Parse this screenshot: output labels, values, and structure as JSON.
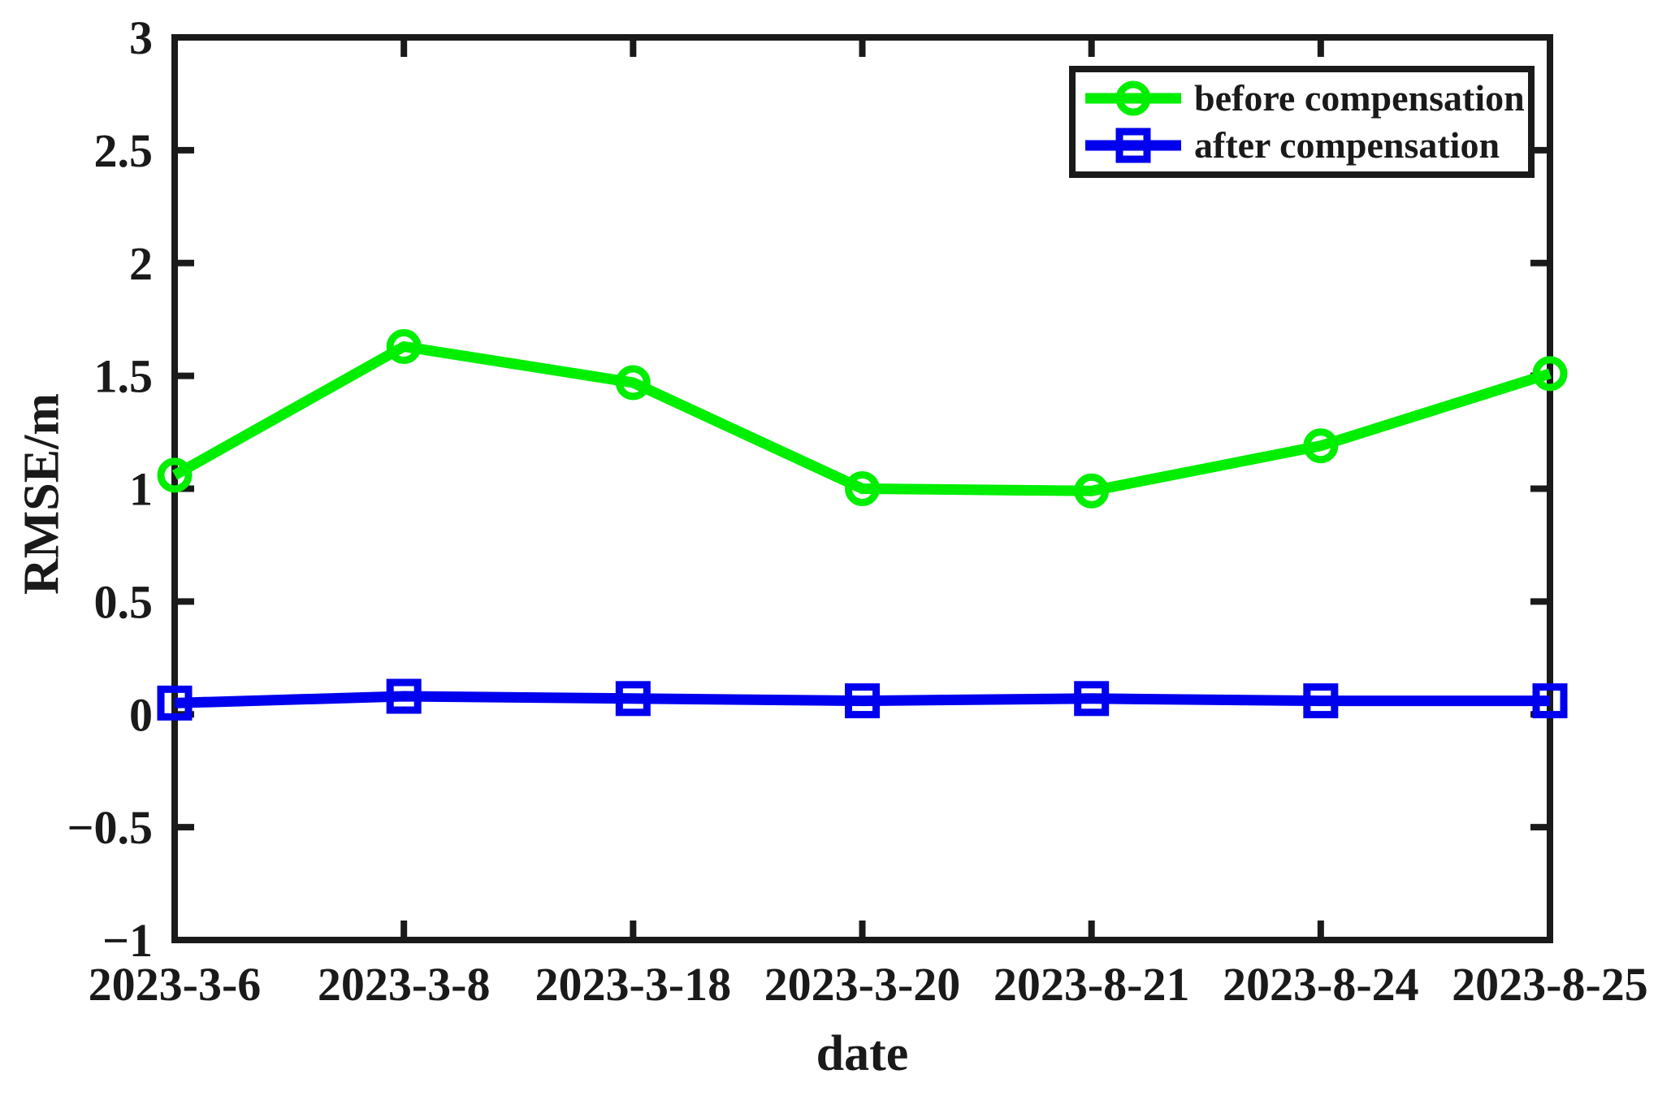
{
  "figure": {
    "background": "#ffffff",
    "axis_color": "#1a1a1a",
    "text_color": "#1a1a1a"
  },
  "chart_data": {
    "type": "line",
    "title": "",
    "xlabel": "date",
    "ylabel": "RMSE/m",
    "categories": [
      "2023-3-6",
      "2023-3-8",
      "2023-3-18",
      "2023-3-20",
      "2023-8-21",
      "2023-8-24",
      "2023-8-25"
    ],
    "series": [
      {
        "name": "before compensation",
        "color": "#00ee00",
        "marker": "circle",
        "values": [
          1.06,
          1.63,
          1.47,
          1.0,
          0.99,
          1.19,
          1.51
        ]
      },
      {
        "name": "after compensation",
        "color": "#0000ee",
        "marker": "square",
        "values": [
          0.05,
          0.08,
          0.07,
          0.06,
          0.07,
          0.06,
          0.06
        ]
      }
    ],
    "ylim": [
      -1,
      3
    ],
    "yticks": [
      -1,
      -0.5,
      0,
      0.5,
      1,
      1.5,
      2,
      2.5,
      3
    ],
    "ytick_labels": [
      "−1",
      "−0.5",
      "0",
      "0.5",
      "1",
      "1.5",
      "2",
      "2.5",
      "3"
    ],
    "grid": false,
    "legend_position": "top-right",
    "tick_direction": "in",
    "box": true
  }
}
